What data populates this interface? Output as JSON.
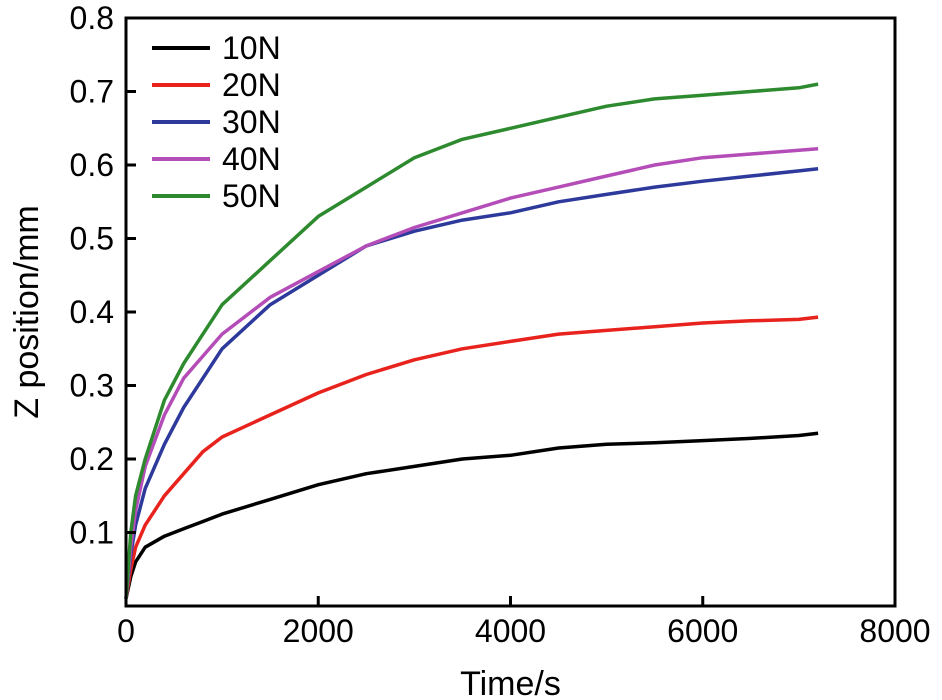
{
  "chart_data": {
    "type": "line",
    "title": "",
    "xlabel": "Time/s",
    "ylabel": "Z position/mm",
    "xlim": [
      0,
      8000
    ],
    "ylim": [
      0,
      0.8
    ],
    "xticks": [
      0,
      2000,
      4000,
      6000,
      8000
    ],
    "xtick_labels": [
      "0",
      "2000",
      "4000",
      "6000",
      "8000"
    ],
    "yticks": [
      0.1,
      0.2,
      0.3,
      0.4,
      0.5,
      0.6,
      0.7,
      0.8
    ],
    "ytick_labels": [
      "0.1",
      "0.2",
      "0.3",
      "0.4",
      "0.5",
      "0.6",
      "0.7",
      "0.8"
    ],
    "grid": false,
    "legend_position": "top-left",
    "x": [
      0,
      50,
      100,
      200,
      400,
      600,
      800,
      1000,
      1500,
      2000,
      2500,
      3000,
      3500,
      4000,
      4500,
      5000,
      5500,
      6000,
      6500,
      7000,
      7200
    ],
    "series": [
      {
        "name": "10N",
        "color": "#000000",
        "values": [
          0.01,
          0.04,
          0.06,
          0.08,
          0.095,
          0.105,
          0.115,
          0.125,
          0.145,
          0.165,
          0.18,
          0.19,
          0.2,
          0.205,
          0.215,
          0.22,
          0.222,
          0.225,
          0.228,
          0.232,
          0.235
        ]
      },
      {
        "name": "20N",
        "color": "#e8221c",
        "values": [
          0.01,
          0.05,
          0.08,
          0.11,
          0.15,
          0.18,
          0.21,
          0.23,
          0.26,
          0.29,
          0.315,
          0.335,
          0.35,
          0.36,
          0.37,
          0.375,
          0.38,
          0.385,
          0.388,
          0.39,
          0.393
        ]
      },
      {
        "name": "30N",
        "color": "#2d3a9b",
        "values": [
          0.01,
          0.07,
          0.11,
          0.16,
          0.22,
          0.27,
          0.31,
          0.35,
          0.41,
          0.45,
          0.49,
          0.51,
          0.525,
          0.535,
          0.55,
          0.56,
          0.57,
          0.578,
          0.585,
          0.592,
          0.595
        ]
      },
      {
        "name": "40N",
        "color": "#b44db8",
        "values": [
          0.01,
          0.08,
          0.13,
          0.19,
          0.26,
          0.31,
          0.34,
          0.37,
          0.42,
          0.455,
          0.49,
          0.515,
          0.535,
          0.555,
          0.57,
          0.585,
          0.6,
          0.61,
          0.615,
          0.62,
          0.622
        ]
      },
      {
        "name": "50N",
        "color": "#2e8a2e",
        "values": [
          0.01,
          0.1,
          0.15,
          0.2,
          0.28,
          0.33,
          0.37,
          0.41,
          0.47,
          0.53,
          0.57,
          0.61,
          0.635,
          0.65,
          0.665,
          0.68,
          0.69,
          0.695,
          0.7,
          0.705,
          0.71
        ]
      }
    ]
  }
}
